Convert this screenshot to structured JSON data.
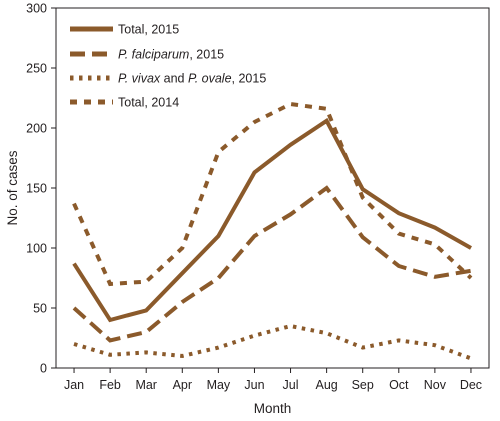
{
  "chart_data": {
    "type": "line",
    "title": "",
    "xlabel": "Month",
    "ylabel": "No. of cases",
    "categories": [
      "Jan",
      "Feb",
      "Mar",
      "Apr",
      "May",
      "Jun",
      "Jul",
      "Aug",
      "Sep",
      "Oct",
      "Nov",
      "Dec"
    ],
    "ylim": [
      0,
      300
    ],
    "yticks": [
      0,
      50,
      100,
      150,
      200,
      250,
      300
    ],
    "grid": false,
    "legend_position": "top-left",
    "color": "#8b5a2b",
    "series": [
      {
        "name": "Total, 2015",
        "style": "solid",
        "values": [
          87,
          40,
          48,
          79,
          110,
          163,
          186,
          206,
          149,
          129,
          117,
          100
        ]
      },
      {
        "name": "P. falciparum, 2015",
        "name_parts": [
          {
            "text": "P. falciparum",
            "italic": true
          },
          {
            "text": ", 2015",
            "italic": false
          }
        ],
        "style": "dashed",
        "values": [
          50,
          23,
          30,
          55,
          75,
          110,
          128,
          150,
          109,
          85,
          76,
          81
        ]
      },
      {
        "name": "P. vivax and P. ovale, 2015",
        "name_parts": [
          {
            "text": "P. vivax",
            "italic": true
          },
          {
            "text": " and ",
            "italic": false
          },
          {
            "text": "P. ovale",
            "italic": true
          },
          {
            "text": ", 2015",
            "italic": false
          }
        ],
        "style": "dotted",
        "values": [
          20,
          11,
          13,
          10,
          17,
          27,
          35,
          29,
          17,
          23,
          19,
          8
        ]
      },
      {
        "name": "Total, 2014",
        "style": "short-dash",
        "values": [
          137,
          70,
          72,
          100,
          180,
          205,
          220,
          216,
          142,
          112,
          103,
          75
        ]
      }
    ]
  }
}
